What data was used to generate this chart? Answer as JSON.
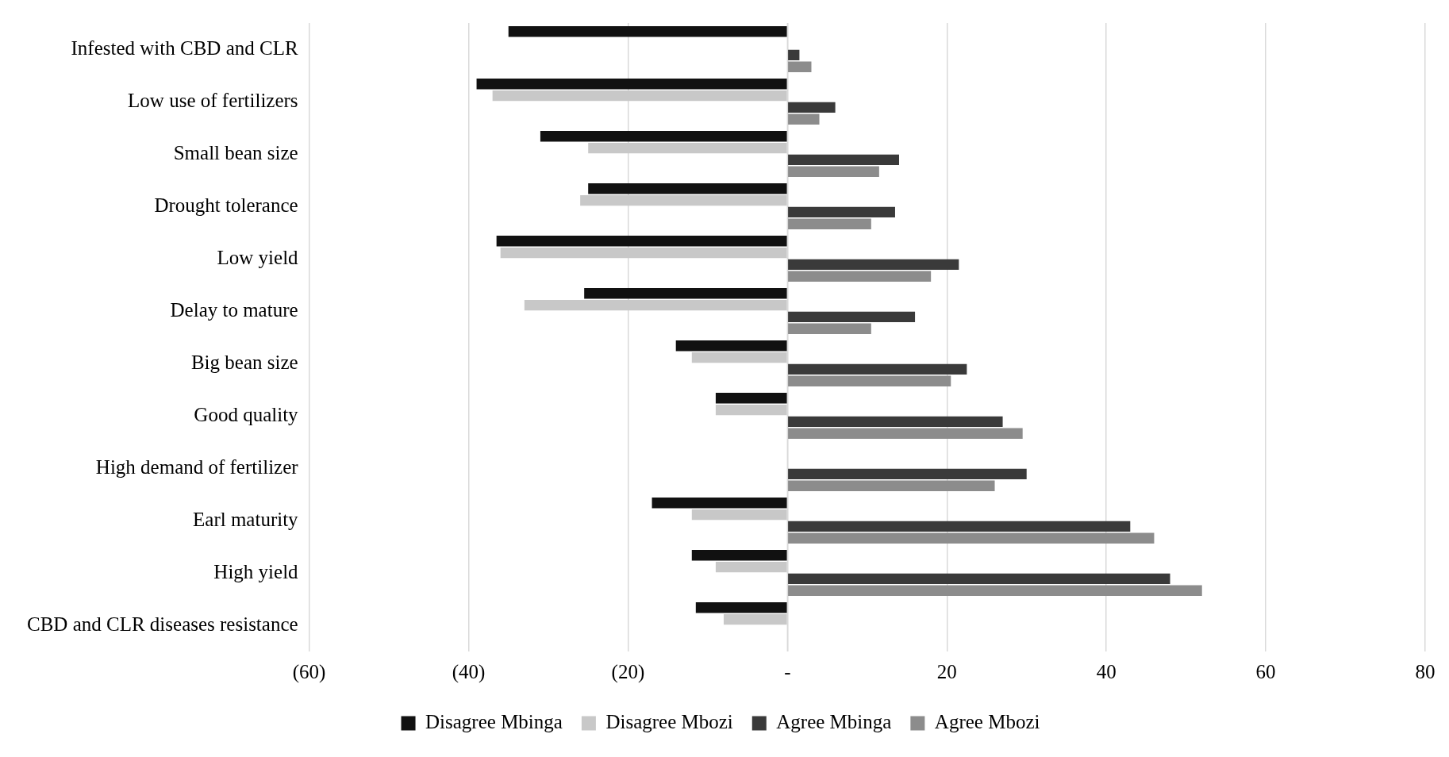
{
  "chart_data": {
    "type": "bar",
    "orientation": "horizontal",
    "categories": [
      "Infested with CBD and CLR",
      "Low use of fertilizers",
      "Small bean size",
      "Drought tolerance",
      "Low yield",
      "Delay to mature",
      "Big bean size",
      "Good quality",
      "High demand of fertilizer",
      "Earl maturity",
      "High yield",
      "CBD and CLR diseases resistance"
    ],
    "series": [
      {
        "name": "Disagree Mbinga",
        "color": "#111111",
        "values": [
          -35,
          -39,
          -31,
          -25,
          -36.5,
          -25.5,
          -14,
          -9,
          null,
          -17,
          -12,
          -11.5
        ]
      },
      {
        "name": "Disagree Mbozi",
        "color": "#c8c8c8",
        "values": [
          null,
          -37,
          -25,
          -26,
          -36,
          -33,
          -12,
          -9,
          null,
          -12,
          -9,
          -8
        ]
      },
      {
        "name": "Agree Mbinga",
        "color": "#3a3a3a",
        "values": [
          1.5,
          6,
          14,
          13.5,
          21.5,
          16,
          22.5,
          27,
          30,
          43,
          48,
          null
        ]
      },
      {
        "name": "Agree Mbozi",
        "color": "#8c8c8c",
        "values": [
          3,
          4,
          11.5,
          10.5,
          18,
          10.5,
          20.5,
          29.5,
          26,
          46,
          52,
          null
        ]
      }
    ],
    "xlim": [
      -60,
      80
    ],
    "xticks": [
      {
        "value": -60,
        "label": "(60)"
      },
      {
        "value": -40,
        "label": "(40)"
      },
      {
        "value": -20,
        "label": "(20)"
      },
      {
        "value": 0,
        "label": "-"
      },
      20,
      40,
      60,
      80
    ],
    "grid": "x",
    "legend": "bottom"
  }
}
